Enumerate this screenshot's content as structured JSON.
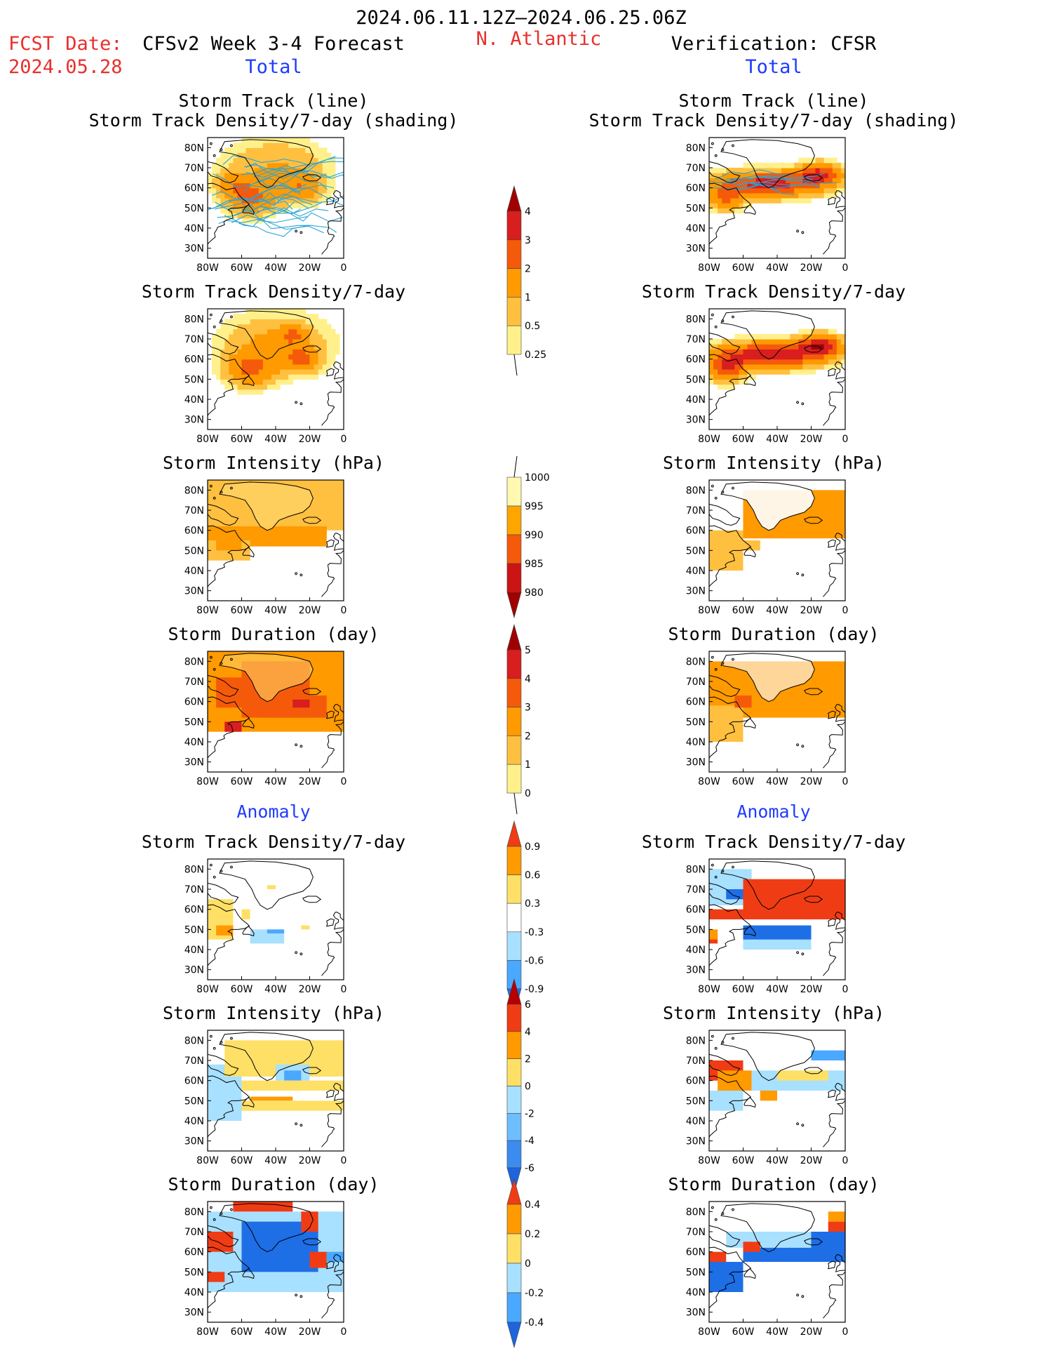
{
  "header": {
    "period": "2024.06.11.12Z–2024.06.25.06Z",
    "fcst_label": "FCST Date:",
    "fcst_date": "2024.05.28",
    "model": "CFSv2 Week 3-4 Forecast",
    "region": "N. Atlantic",
    "verification": "Verification: CFSR"
  },
  "sections": {
    "total": "Total",
    "anomaly": "Anomaly"
  },
  "axes": {
    "lat_labels": [
      "80N",
      "70N",
      "60N",
      "50N",
      "40N",
      "30N"
    ],
    "lon_labels": [
      "80W",
      "60W",
      "40W",
      "20W",
      "0"
    ]
  },
  "panel_titles": {
    "track": "Storm Track (line)",
    "track_shading": "Storm Track Density/7-day (shading)",
    "density": "Storm Track Density/7-day",
    "intensity": "Storm Intensity (hPa)",
    "duration": "Storm Duration (day)"
  },
  "colorbars": {
    "density": {
      "labels": [
        "4",
        "3",
        "2",
        "1",
        "0.5",
        "0.25"
      ],
      "colors": [
        "#a00000",
        "#d81e1e",
        "#f55a0a",
        "#ff9a00",
        "#ffc040",
        "#fff08c"
      ]
    },
    "intensity": {
      "labels": [
        "1000",
        "995",
        "990",
        "985",
        "980"
      ],
      "colors": [
        "#fff8b0",
        "#ffa500",
        "#f55a0a",
        "#cc1414",
        "#a00000"
      ]
    },
    "duration": {
      "labels": [
        "5",
        "4",
        "3",
        "2",
        "1",
        "0"
      ],
      "colors": [
        "#a00000",
        "#d81e1e",
        "#f55a0a",
        "#ff9a00",
        "#ffc040",
        "#fff08c"
      ]
    },
    "anom_density": {
      "labels": [
        "0.9",
        "0.6",
        "0.3",
        "-0.3",
        "-0.6",
        "-0.9"
      ],
      "colors": [
        "#f03c14",
        "#ff9a00",
        "#ffe066",
        "#ffffff",
        "#a8e0ff",
        "#4aa8ff",
        "#1e6ee6"
      ]
    },
    "anom_intensity": {
      "labels": [
        "6",
        "4",
        "2",
        "0",
        "-2",
        "-4",
        "-6"
      ],
      "colors": [
        "#b40000",
        "#f03c14",
        "#ff9a00",
        "#ffe066",
        "#a8e0ff",
        "#6ebeff",
        "#3c8cf0",
        "#1e64dc"
      ]
    },
    "anom_duration": {
      "labels": [
        "0.4",
        "0.2",
        "0",
        "-0.2",
        "-0.4"
      ],
      "colors": [
        "#f03c14",
        "#ff9a00",
        "#ffe066",
        "#a8e0ff",
        "#4aa8ff",
        "#1e64dc"
      ]
    }
  },
  "colors": {
    "header_red": "#e8302c",
    "section_blue": "#1f3bff",
    "track_line": "#2aa4d8"
  }
}
